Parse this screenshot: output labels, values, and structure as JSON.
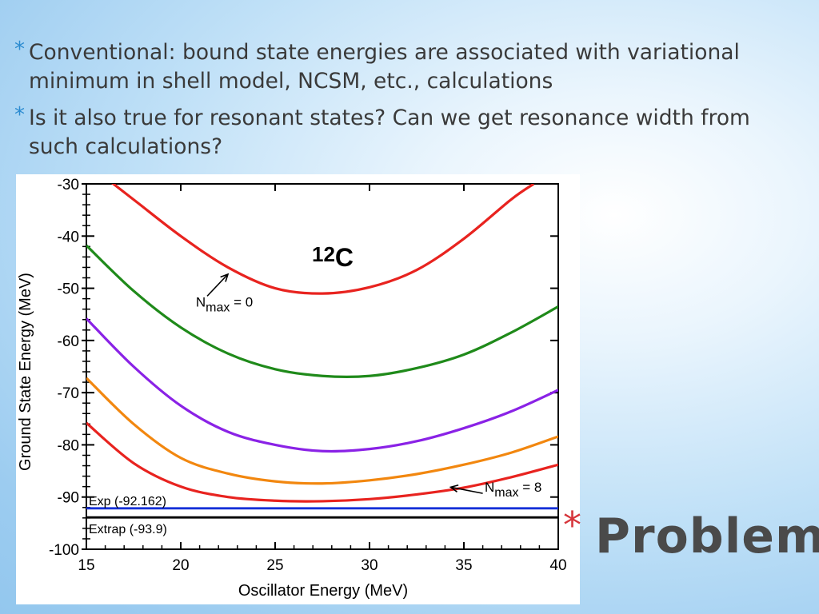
{
  "bullets": [
    "Conventional: bound state energies are associated with variational minimum in shell model, NCSM, etc., calculations",
    "Is it also true for resonant states? Can we get resonance width from such calculations?"
  ],
  "bullet_marker": "*",
  "slide_title": "Problem",
  "colors": {
    "accent_star": "#2b8bd0",
    "title_star": "#d6353b",
    "text": "#3a3a3a"
  },
  "chart_data": {
    "type": "line",
    "title": "12C",
    "title_parts": {
      "mass": "12",
      "element": "C"
    },
    "xlabel": "Oscillator Energy (MeV)",
    "ylabel": "Ground State Energy (MeV)",
    "xlim": [
      15,
      40
    ],
    "ylim": [
      -100,
      -30
    ],
    "x_ticks": [
      15,
      20,
      25,
      30,
      35,
      40
    ],
    "y_ticks": [
      -30,
      -40,
      -50,
      -60,
      -70,
      -80,
      -90,
      -100
    ],
    "grid": false,
    "series": [
      {
        "color": "#e8231f",
        "points": [
          [
            15,
            -26
          ],
          [
            17.5,
            -33
          ],
          [
            20,
            -40
          ],
          [
            22.5,
            -46
          ],
          [
            25,
            -50
          ],
          [
            27.5,
            -51
          ],
          [
            30,
            -49.8
          ],
          [
            32.5,
            -46.5
          ],
          [
            35,
            -40.5
          ],
          [
            37.5,
            -33
          ],
          [
            38.7,
            -30
          ]
        ]
      },
      {
        "color": "#1f8a1a",
        "points": [
          [
            15,
            -41.8
          ],
          [
            17.5,
            -50.5
          ],
          [
            20,
            -57.5
          ],
          [
            22.5,
            -62.5
          ],
          [
            25,
            -65.5
          ],
          [
            27.5,
            -66.8
          ],
          [
            30,
            -66.8
          ],
          [
            32.5,
            -65.3
          ],
          [
            35,
            -62.7
          ],
          [
            37.5,
            -58.5
          ],
          [
            40,
            -53.5
          ]
        ]
      },
      {
        "color": "#8a22e6",
        "points": [
          [
            15,
            -55.8
          ],
          [
            17.5,
            -65
          ],
          [
            20,
            -72.5
          ],
          [
            22.5,
            -77.5
          ],
          [
            25,
            -80
          ],
          [
            27.5,
            -81.2
          ],
          [
            30,
            -80.8
          ],
          [
            32.5,
            -79.3
          ],
          [
            35,
            -76.8
          ],
          [
            37.5,
            -73.6
          ],
          [
            40,
            -69.5
          ]
        ]
      },
      {
        "color": "#f2870f",
        "points": [
          [
            15,
            -67.2
          ],
          [
            17.5,
            -76
          ],
          [
            20,
            -82.5
          ],
          [
            22.5,
            -85.5
          ],
          [
            25,
            -87
          ],
          [
            27.5,
            -87.4
          ],
          [
            30,
            -86.8
          ],
          [
            32.5,
            -85.6
          ],
          [
            35,
            -83.8
          ],
          [
            37.5,
            -81.5
          ],
          [
            40,
            -78.4
          ]
        ]
      },
      {
        "color": "#e8231f",
        "points": [
          [
            15,
            -75.8
          ],
          [
            17.5,
            -83.5
          ],
          [
            20,
            -88
          ],
          [
            22.5,
            -90
          ],
          [
            25,
            -90.7
          ],
          [
            27.5,
            -90.8
          ],
          [
            30,
            -90.4
          ],
          [
            32.5,
            -89.5
          ],
          [
            35,
            -88.2
          ],
          [
            37.5,
            -86.2
          ],
          [
            40,
            -83.8
          ]
        ]
      }
    ],
    "reference_lines": [
      {
        "label": "Exp (-92.162)",
        "y": -92.162,
        "color": "#1530d8"
      },
      {
        "label": "Extrap (-93.9)",
        "y": -93.9,
        "color": "#000000"
      }
    ],
    "annotations": [
      {
        "text": "N",
        "subscript": "max",
        "suffix": " = 0",
        "x": 20.8,
        "y": -53.5,
        "arrow_from": [
          21.4,
          -51.5
        ],
        "arrow_to": [
          22.5,
          -47.3
        ]
      },
      {
        "text": "N",
        "subscript": "max",
        "suffix": " = 8",
        "x": 36.1,
        "y": -89,
        "arrow_from": [
          36,
          -89.3
        ],
        "arrow_to": [
          34.3,
          -88.1
        ]
      }
    ]
  }
}
